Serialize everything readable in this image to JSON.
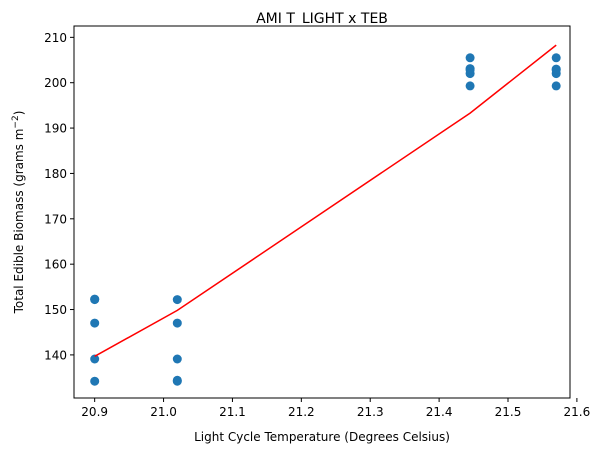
{
  "chart_data": {
    "type": "scatter",
    "title": "AMI T_LIGHT x TEB",
    "xlabel": "Light Cycle Temperature (Degrees Celsius)",
    "ylabel_main": "Total Edible Biomass (grams m",
    "ylabel_sup": "−2",
    "ylabel_close": ")",
    "xlim": [
      20.87,
      21.59
    ],
    "ylim": [
      130.5,
      212.5
    ],
    "xticks": [
      20.9,
      21.0,
      21.1,
      21.2,
      21.3,
      21.4,
      21.5,
      21.6
    ],
    "xtick_labels": [
      "20.9",
      "21.0",
      "21.1",
      "21.2",
      "21.3",
      "21.4",
      "21.5",
      "21.6"
    ],
    "yticks": [
      140,
      150,
      160,
      170,
      180,
      190,
      200,
      210
    ],
    "ytick_labels": [
      "140",
      "150",
      "160",
      "170",
      "180",
      "190",
      "200",
      "210"
    ],
    "grid": false,
    "series": [
      {
        "type": "scatter",
        "color": "#1f77b4",
        "x": [
          20.9,
          20.9,
          20.9,
          20.9,
          20.9,
          21.02,
          21.02,
          21.02,
          21.02,
          21.02,
          21.445,
          21.445,
          21.445,
          21.445,
          21.445,
          21.57,
          21.57,
          21.57,
          21.57,
          21.57
        ],
        "y": [
          134.2,
          139.1,
          147.0,
          152.2,
          152.3,
          134.2,
          134.4,
          139.1,
          147.0,
          152.2,
          199.3,
          202.0,
          202.8,
          203.1,
          205.5,
          199.3,
          202.0,
          202.8,
          203.0,
          205.5
        ]
      },
      {
        "type": "line",
        "color": "#ff0000",
        "x": [
          20.9,
          21.02,
          21.445,
          21.57
        ],
        "y": [
          139.7,
          149.8,
          193.3,
          208.3
        ]
      }
    ]
  }
}
